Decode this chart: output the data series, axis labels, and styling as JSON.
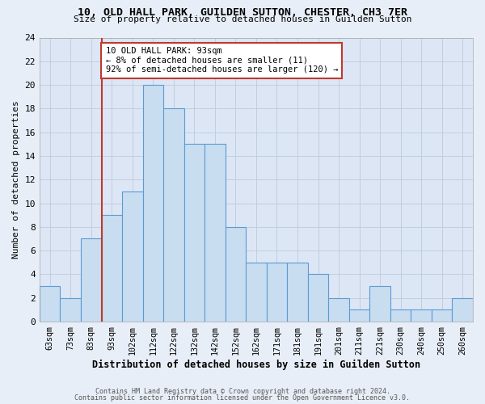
{
  "title": "10, OLD HALL PARK, GUILDEN SUTTON, CHESTER, CH3 7ER",
  "subtitle": "Size of property relative to detached houses in Guilden Sutton",
  "xlabel": "Distribution of detached houses by size in Guilden Sutton",
  "ylabel": "Number of detached properties",
  "footer_line1": "Contains HM Land Registry data © Crown copyright and database right 2024.",
  "footer_line2": "Contains public sector information licensed under the Open Government Licence v3.0.",
  "annotation_title": "10 OLD HALL PARK: 93sqm",
  "annotation_line1": "← 8% of detached houses are smaller (11)",
  "annotation_line2": "92% of semi-detached houses are larger (120) →",
  "bar_labels": [
    "63sqm",
    "73sqm",
    "83sqm",
    "93sqm",
    "102sqm",
    "112sqm",
    "122sqm",
    "132sqm",
    "142sqm",
    "152sqm",
    "162sqm",
    "171sqm",
    "181sqm",
    "191sqm",
    "201sqm",
    "211sqm",
    "221sqm",
    "230sqm",
    "240sqm",
    "250sqm",
    "260sqm"
  ],
  "bar_values": [
    3,
    2,
    7,
    9,
    11,
    20,
    18,
    15,
    15,
    8,
    5,
    5,
    5,
    4,
    2,
    1,
    3,
    1,
    1,
    1,
    2
  ],
  "bar_color": "#c9ddf0",
  "bar_edge_color": "#5b9bd5",
  "marker_line_color": "#c0392b",
  "annotation_box_edge": "#c0392b",
  "ylim": [
    0,
    24
  ],
  "yticks": [
    0,
    2,
    4,
    6,
    8,
    10,
    12,
    14,
    16,
    18,
    20,
    22,
    24
  ],
  "background_color": "#e8eef7",
  "plot_bg_color": "#dce6f5",
  "grid_color": "#c0cfe0"
}
